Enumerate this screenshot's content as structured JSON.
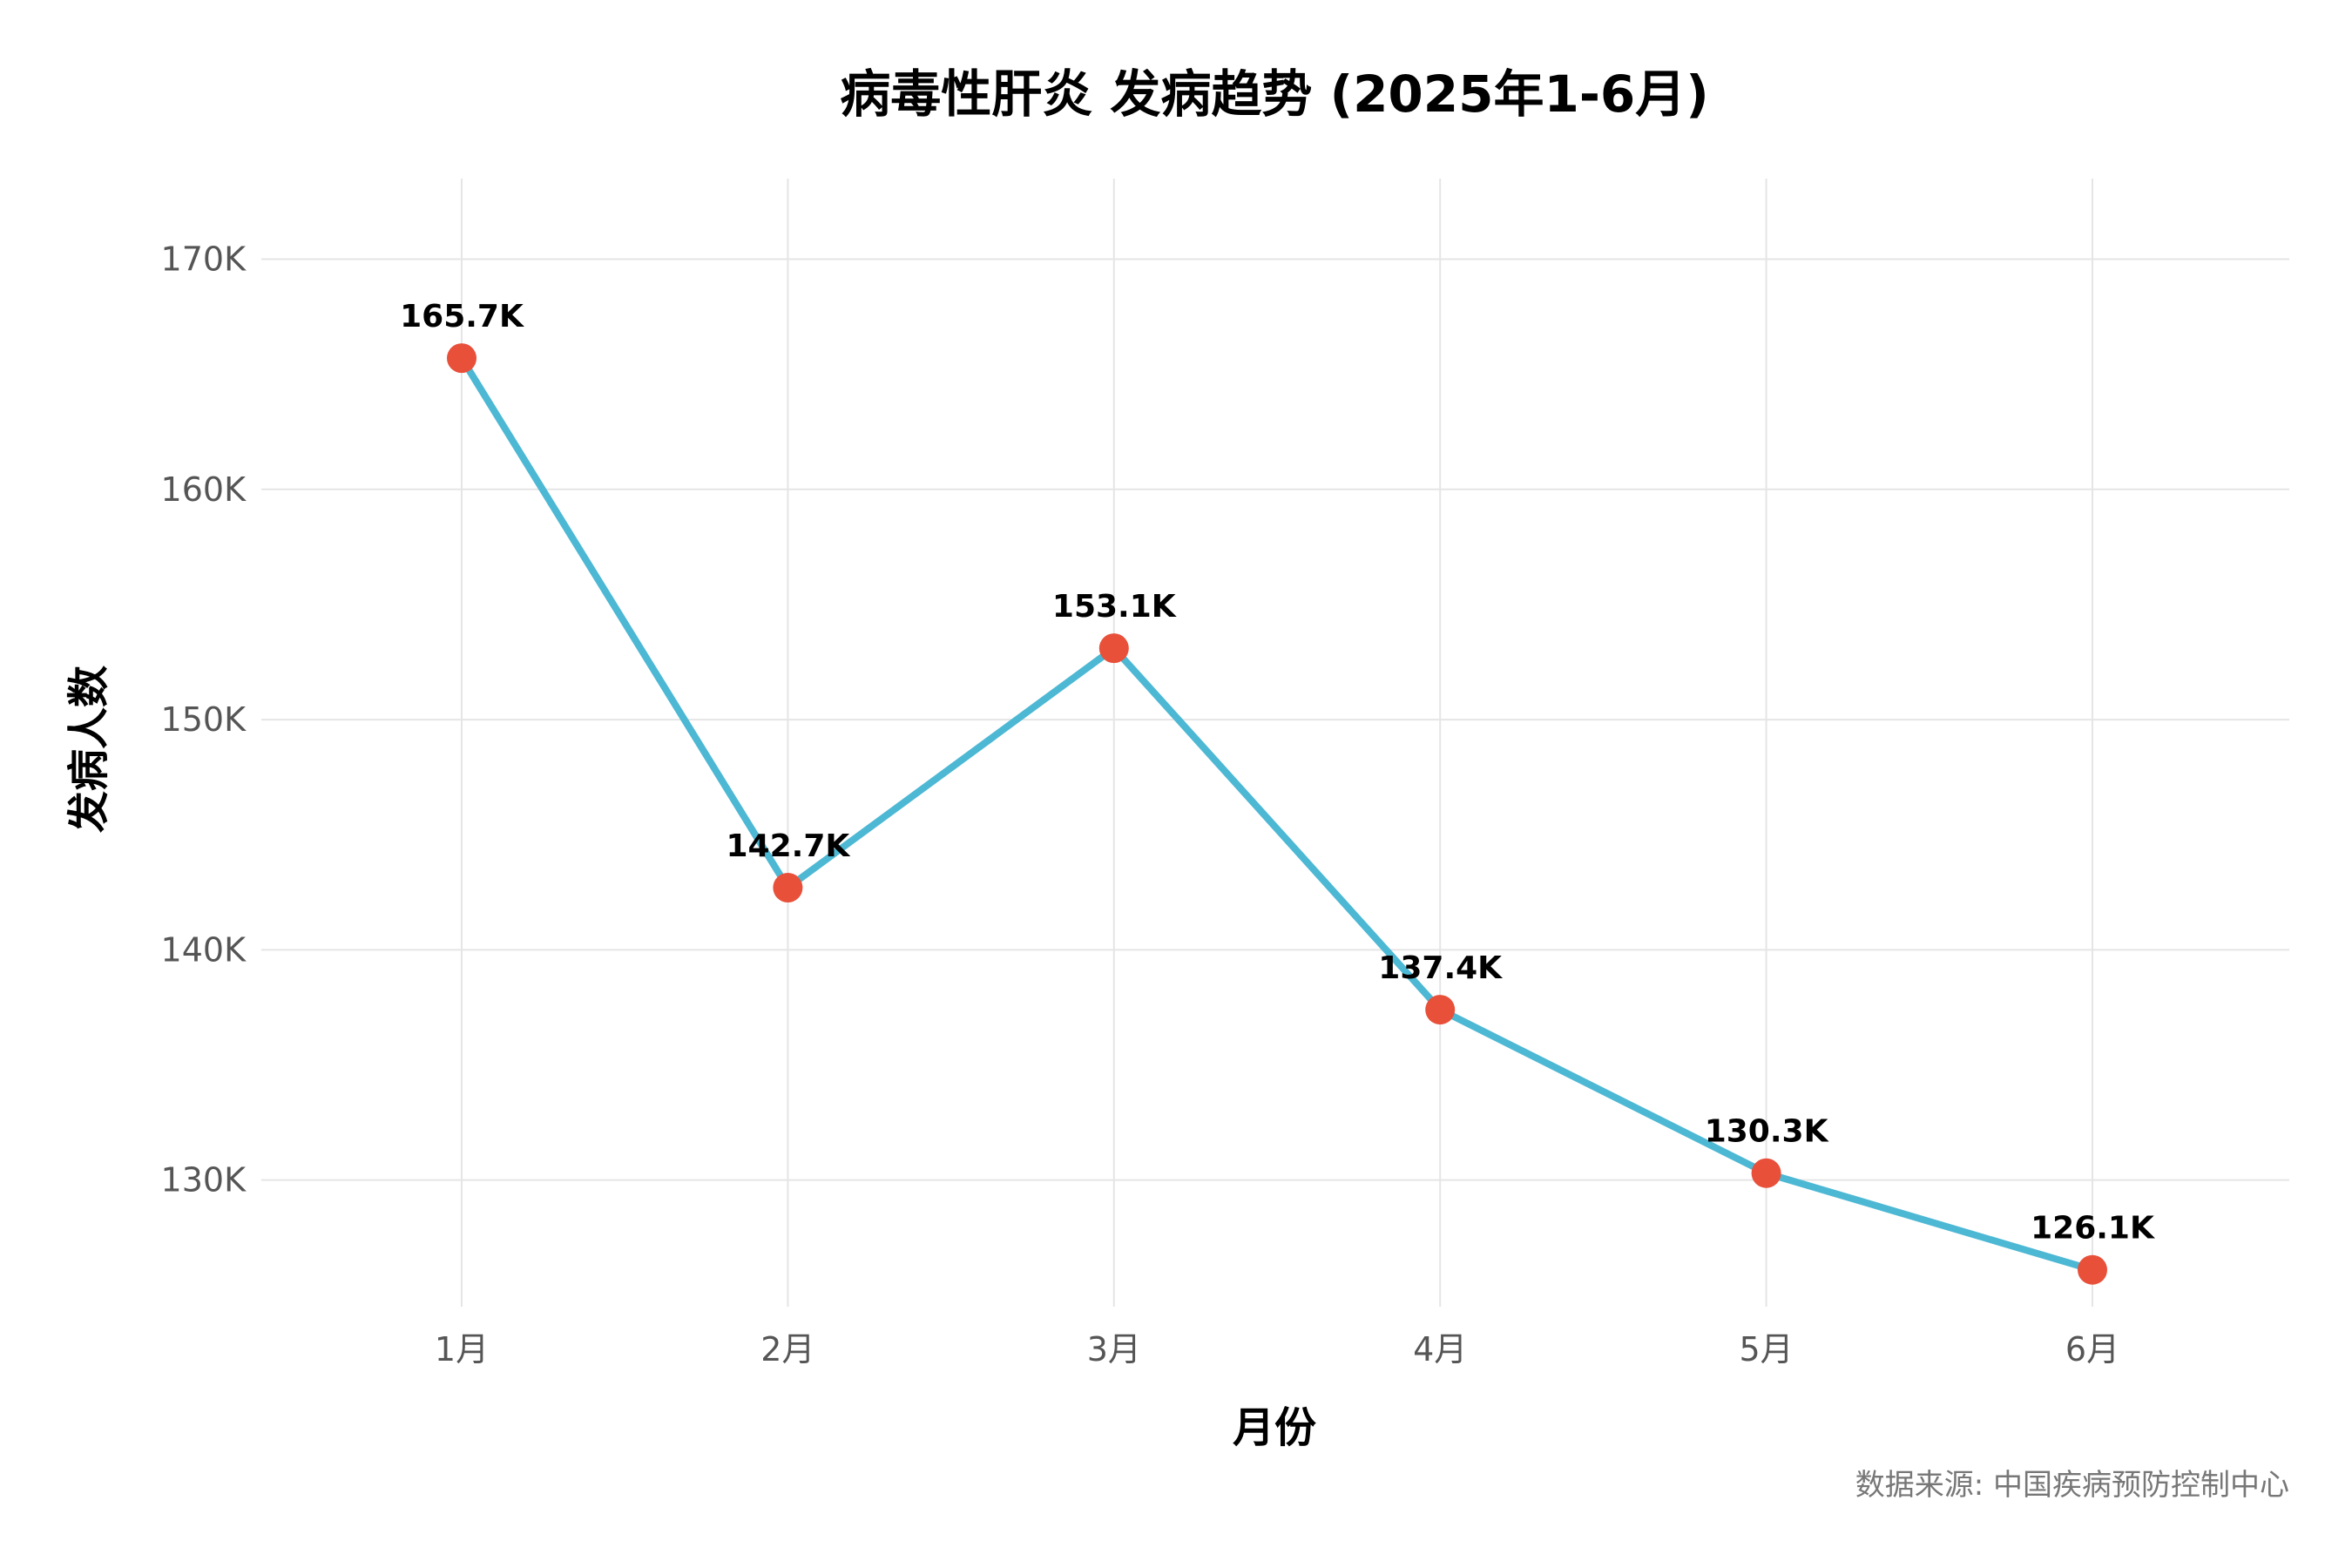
{
  "chart_data": {
    "type": "line",
    "title": "病毒性肝炎 发病趋势 (2025年1-6月)",
    "xlabel": "月份",
    "ylabel": "发病人数",
    "categories": [
      "1月",
      "2月",
      "3月",
      "4月",
      "5月",
      "6月"
    ],
    "series": [
      {
        "values": [
          165700,
          142700,
          153100,
          137400,
          130300,
          126100
        ],
        "data_labels": [
          "165.7K",
          "142.7K",
          "153.1K",
          "137.4K",
          "130.3K",
          "126.1K"
        ]
      }
    ],
    "yticks": [
      130000,
      140000,
      150000,
      160000,
      170000
    ],
    "ytick_labels": [
      "130K",
      "140K",
      "150K",
      "160K",
      "170K"
    ],
    "ylim": [
      124500,
      173500
    ],
    "grid": true,
    "legend": "none",
    "colors": {
      "line": "#4DB8D4",
      "marker": "#E8503A",
      "grid": "#E5E5E5"
    },
    "caption": "数据来源: 中国疾病预防控制中心"
  }
}
